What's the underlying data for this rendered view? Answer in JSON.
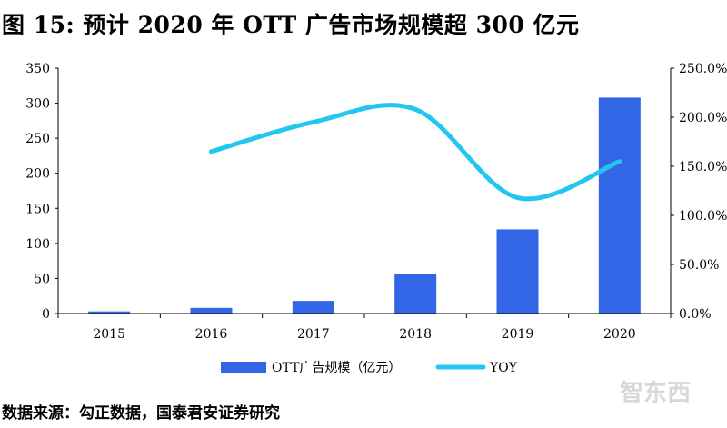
{
  "title": "图 15: 预计 2020 年 OTT 广告市场规模超 300 亿元",
  "source": "数据来源：勾正数据，国泰君安证券研究",
  "watermark": "智东西",
  "chart_data": {
    "type": "bar",
    "categories": [
      "2015",
      "2016",
      "2017",
      "2018",
      "2019",
      "2020"
    ],
    "series": [
      {
        "name": "OTT广告规模（亿元）",
        "type": "bar",
        "axis": "left",
        "color": "#3366e6",
        "values": [
          3,
          8,
          18,
          56,
          120,
          308
        ]
      },
      {
        "name": "YOY",
        "type": "line",
        "axis": "right",
        "color": "#22c7f0",
        "values": [
          null,
          165,
          195,
          208,
          118,
          155
        ]
      }
    ],
    "y_left": {
      "range": [
        0,
        350
      ],
      "ticks": [
        "0",
        "50",
        "100",
        "150",
        "200",
        "250",
        "300",
        "350"
      ]
    },
    "y_right": {
      "range": [
        0,
        250
      ],
      "ticks": [
        "0.0%",
        "50.0%",
        "100.0%",
        "150.0%",
        "200.0%",
        "250.0%"
      ]
    },
    "legend_position": "bottom-center",
    "grid": false
  }
}
